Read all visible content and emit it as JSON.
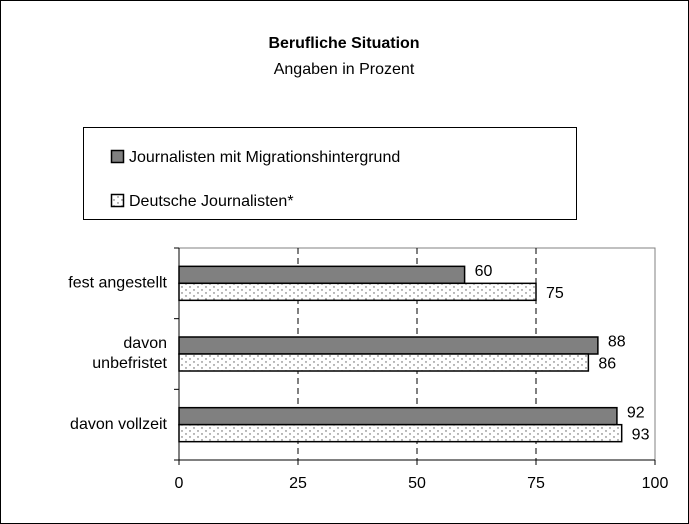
{
  "chart_data": {
    "type": "hbar",
    "title": "Berufliche Situation",
    "subtitle": "Angaben in Prozent",
    "categories": [
      "fest angestellt",
      "davon unbefristet",
      "davon vollzeit"
    ],
    "series": [
      {
        "name": "Journalisten mit Migrationshintergrund",
        "color": "#808080",
        "values": [
          60,
          88,
          92
        ]
      },
      {
        "name": "Deutsche Journalisten*",
        "color": "#ffffff",
        "values": [
          75,
          86,
          93
        ]
      }
    ],
    "xlim": [
      0,
      100
    ],
    "xticks": [
      0,
      25,
      50,
      75,
      100
    ],
    "grid": true
  }
}
